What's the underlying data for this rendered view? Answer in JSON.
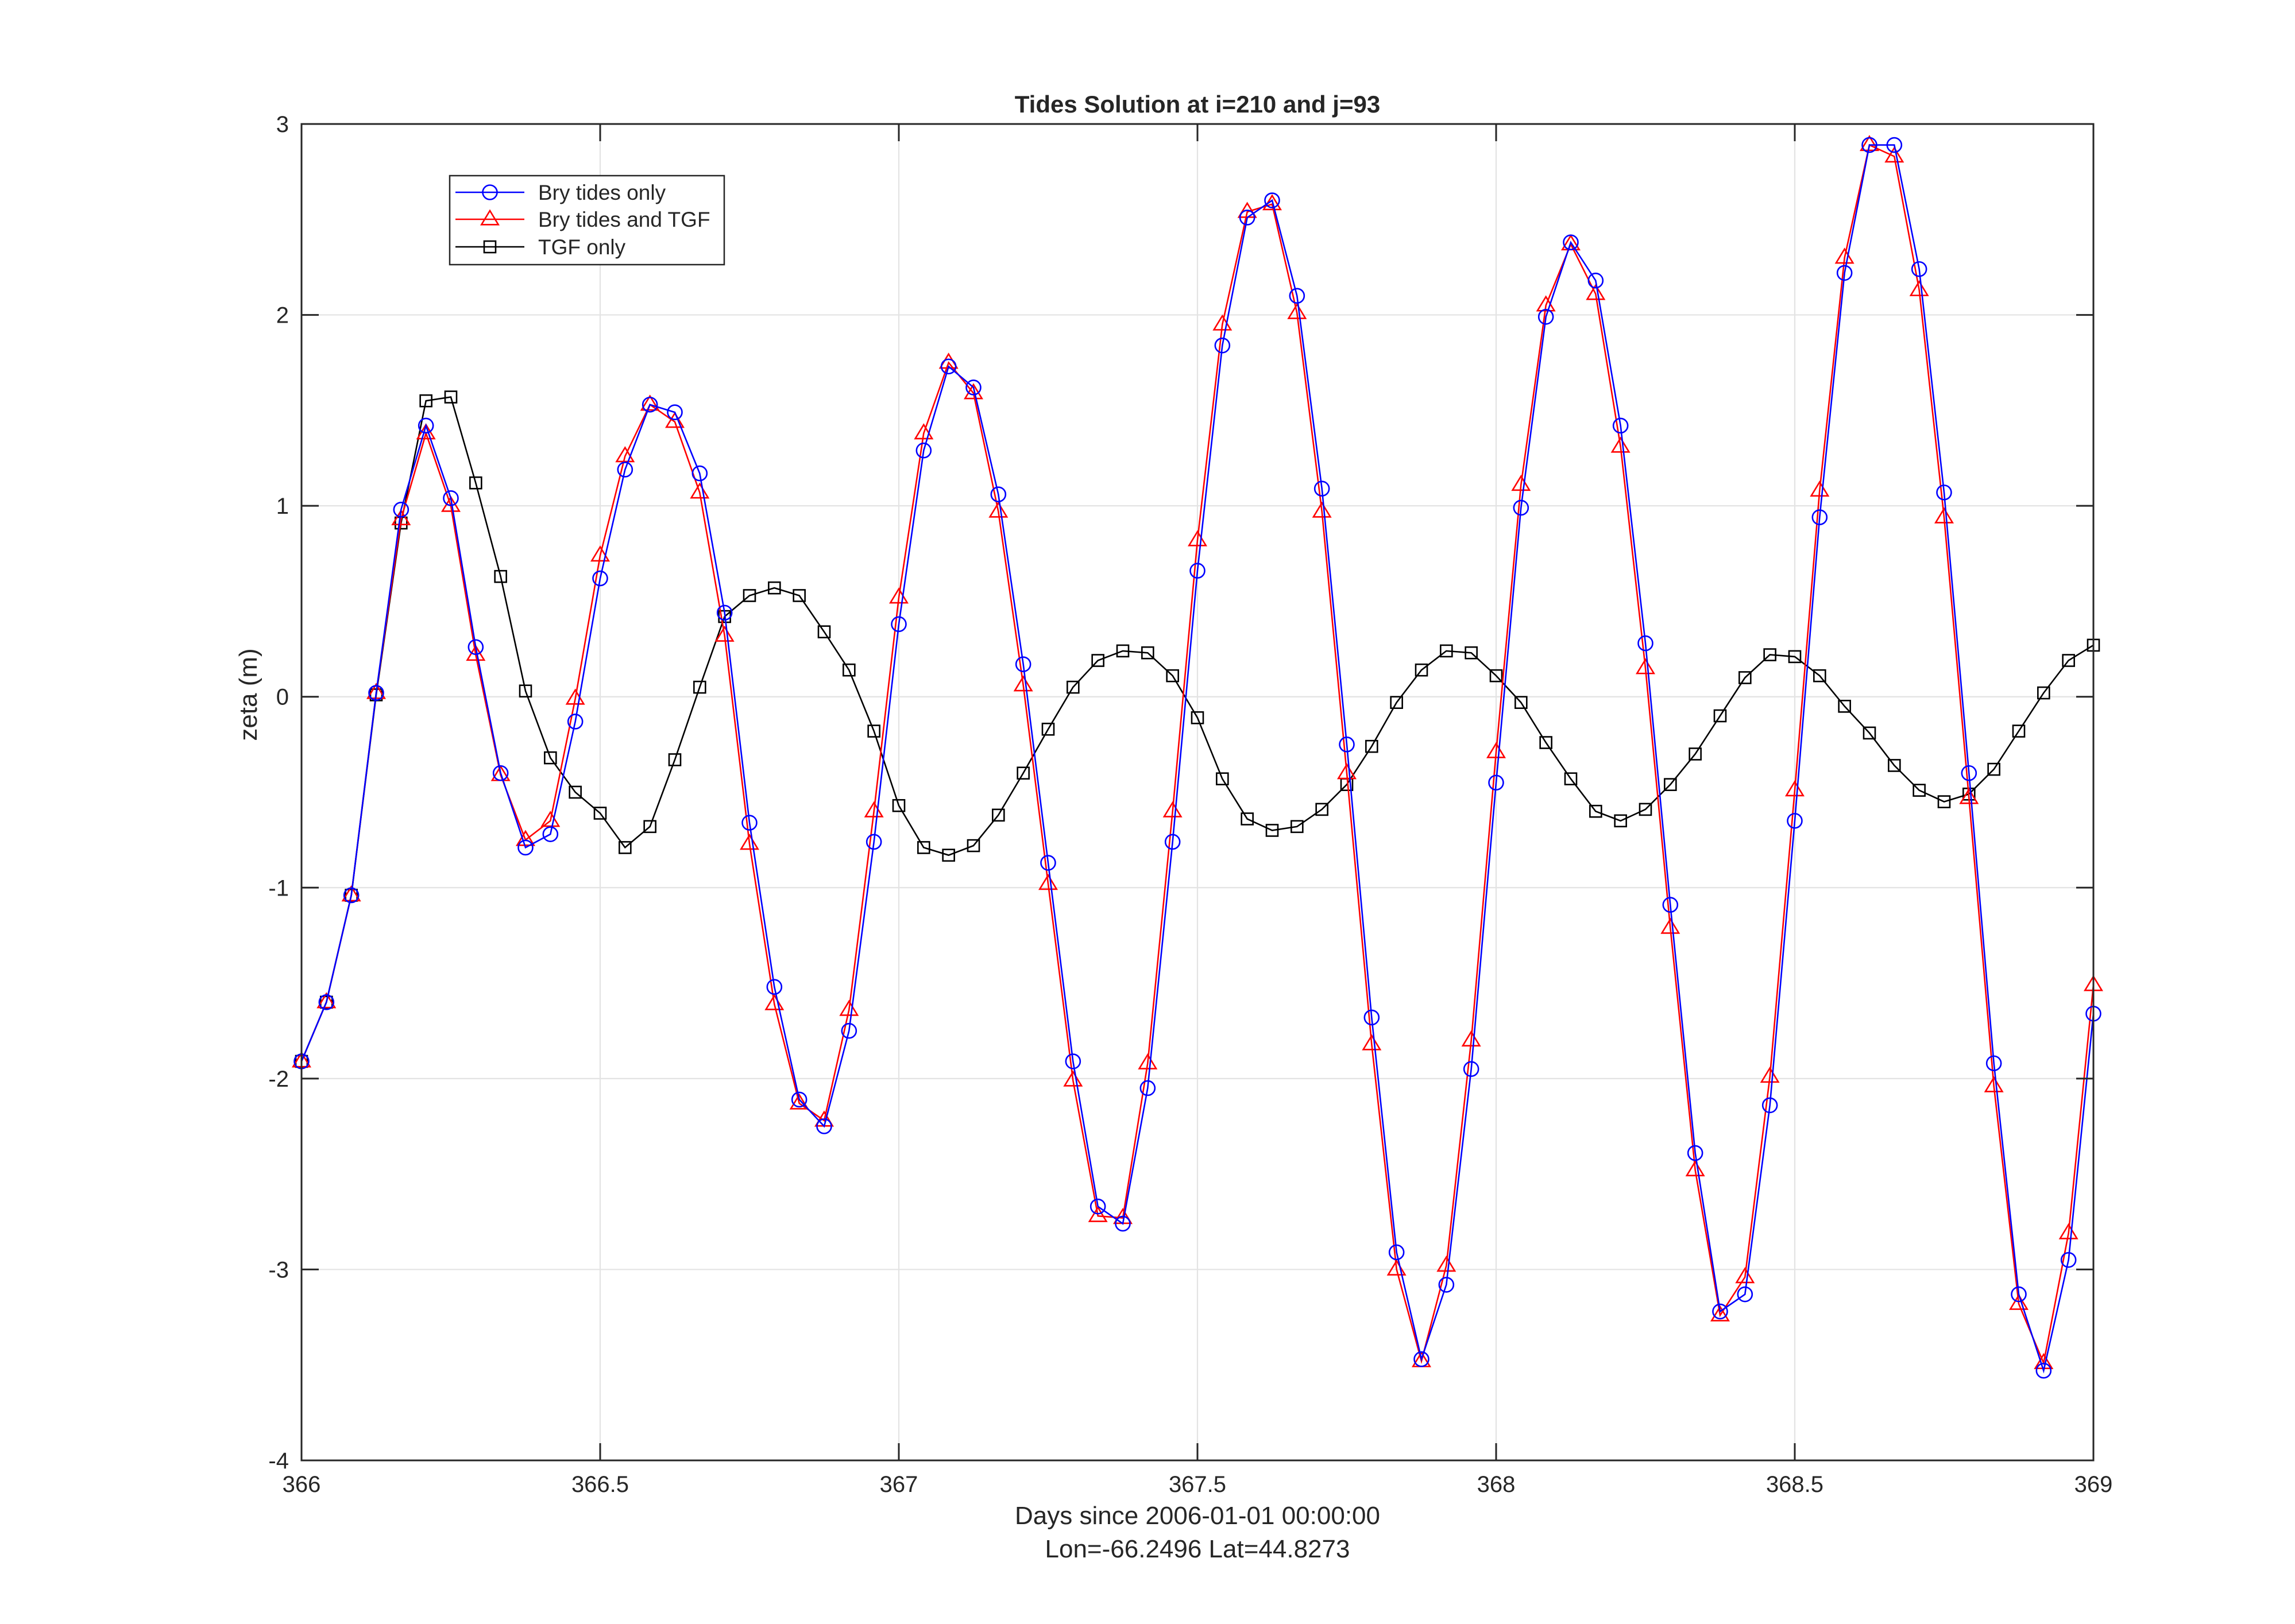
{
  "chart_data": {
    "type": "line",
    "title": "Tides Solution at  i=210 and j=93",
    "xlabel": "Days since 2006-01-01 00:00:00",
    "xlabel2": "Lon=-66.2496     Lat=44.8273",
    "ylabel": "zeta (m)",
    "xlim": [
      366,
      369
    ],
    "ylim": [
      -4,
      3
    ],
    "xticks": [
      366,
      366.5,
      367,
      367.5,
      368,
      368.5,
      369
    ],
    "xtick_labels": [
      "366",
      "366.5",
      "367",
      "367.5",
      "368",
      "368.5",
      "369"
    ],
    "yticks": [
      -4,
      -3,
      -2,
      -1,
      0,
      1,
      2,
      3
    ],
    "ytick_labels": [
      "-4",
      "-3",
      "-2",
      "-1",
      "0",
      "1",
      "2",
      "3"
    ],
    "grid": true,
    "legend_position": "top-left",
    "x_start": 366,
    "x_step": 0.041666667,
    "series": [
      {
        "name": "Bry tides only",
        "color": "#0000ff",
        "marker": "circle",
        "values": [
          -1.91,
          -1.6,
          -1.04,
          0.02,
          0.98,
          1.42,
          1.04,
          0.26,
          -0.4,
          -0.79,
          -0.72,
          -0.13,
          0.62,
          1.19,
          1.53,
          1.49,
          1.17,
          0.44,
          -0.66,
          -1.52,
          -2.11,
          -2.25,
          -1.75,
          -0.76,
          0.38,
          1.29,
          1.73,
          1.62,
          1.06,
          0.17,
          -0.87,
          -1.91,
          -2.67,
          -2.76,
          -2.05,
          -0.76,
          0.66,
          1.84,
          2.51,
          2.6,
          2.1,
          1.09,
          -0.25,
          -1.68,
          -2.91,
          -3.47,
          -3.08,
          -1.95,
          -0.45,
          0.99,
          1.99,
          2.38,
          2.18,
          1.42,
          0.28,
          -1.09,
          -2.39,
          -3.22,
          -3.13,
          -2.14,
          -0.65,
          0.94,
          2.22,
          2.89,
          2.89,
          2.24,
          1.07,
          -0.4,
          -1.92,
          -3.13,
          -3.53,
          -2.95,
          -1.66
        ]
      },
      {
        "name": "Bry tides and TGF",
        "color": "#ff0000",
        "marker": "triangle",
        "values": [
          -1.91,
          -1.6,
          -1.04,
          0.02,
          0.93,
          1.38,
          1.0,
          0.22,
          -0.41,
          -0.75,
          -0.65,
          -0.01,
          0.74,
          1.26,
          1.53,
          1.44,
          1.07,
          0.32,
          -0.77,
          -1.61,
          -2.13,
          -2.22,
          -1.64,
          -0.6,
          0.52,
          1.38,
          1.75,
          1.59,
          0.97,
          0.06,
          -0.98,
          -2.01,
          -2.72,
          -2.73,
          -1.92,
          -0.6,
          0.82,
          1.95,
          2.54,
          2.58,
          2.01,
          0.97,
          -0.4,
          -1.82,
          -3.0,
          -3.48,
          -2.98,
          -1.8,
          -0.29,
          1.11,
          2.05,
          2.37,
          2.11,
          1.31,
          0.15,
          -1.21,
          -2.48,
          -3.24,
          -3.04,
          -1.99,
          -0.49,
          1.08,
          2.3,
          2.89,
          2.83,
          2.13,
          0.94,
          -0.53,
          -2.04,
          -3.18,
          -3.49,
          -2.81,
          -1.51
        ]
      },
      {
        "name": "TGF only",
        "color": "#000000",
        "marker": "square",
        "values": [
          -1.91,
          -1.6,
          -1.04,
          0.01,
          0.91,
          1.55,
          1.57,
          1.12,
          0.63,
          0.03,
          -0.32,
          -0.5,
          -0.61,
          -0.79,
          -0.68,
          -0.33,
          0.05,
          0.42,
          0.53,
          0.57,
          0.53,
          0.34,
          0.14,
          -0.18,
          -0.57,
          -0.79,
          -0.83,
          -0.78,
          -0.62,
          -0.4,
          -0.17,
          0.05,
          0.19,
          0.24,
          0.23,
          0.11,
          -0.11,
          -0.43,
          -0.64,
          -0.7,
          -0.68,
          -0.59,
          -0.46,
          -0.26,
          -0.03,
          0.14,
          0.24,
          0.23,
          0.11,
          -0.03,
          -0.24,
          -0.43,
          -0.6,
          -0.65,
          -0.59,
          -0.46,
          -0.3,
          -0.1,
          0.1,
          0.22,
          0.21,
          0.11,
          -0.05,
          -0.19,
          -0.36,
          -0.49,
          -0.55,
          -0.51,
          -0.38,
          -0.18,
          0.02,
          0.19,
          0.27
        ]
      }
    ]
  }
}
